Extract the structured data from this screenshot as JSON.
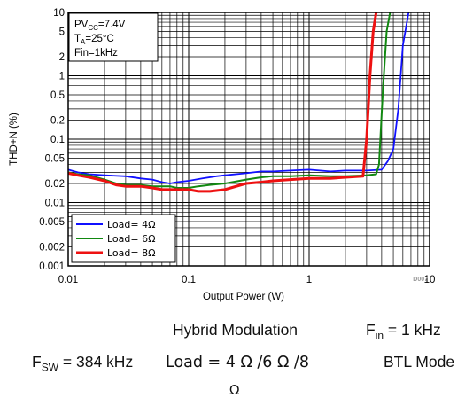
{
  "chart_data": {
    "type": "line",
    "xlabel": "Output Power (W)",
    "ylabel": "THD+N (%)",
    "xscale": "log",
    "yscale": "log",
    "xlim": [
      0.01,
      10
    ],
    "ylim": [
      0.001,
      10
    ],
    "x_ticks": [
      "0.01",
      "0.1",
      "1",
      "10"
    ],
    "y_ticks": [
      "0.001",
      "0.002",
      "0.005",
      "0.01",
      "0.02",
      "0.05",
      "0.1",
      "0.2",
      "0.5",
      "1",
      "2",
      "5",
      "10"
    ],
    "grid": true,
    "annotation": {
      "line1_main": "PV",
      "line1_sub": "CC",
      "line1_rest": "=7.4V",
      "line2_main": "T",
      "line2_sub": "A",
      "line2_rest": "=25°C",
      "line3": "Fin=1kHz"
    },
    "legend_placement": "bottom-left",
    "watermark": "D007",
    "series": [
      {
        "name": "Load= 4Ω",
        "color": "#1010ff",
        "points": [
          [
            0.01,
            0.033
          ],
          [
            0.012,
            0.03
          ],
          [
            0.015,
            0.028
          ],
          [
            0.02,
            0.027
          ],
          [
            0.03,
            0.026
          ],
          [
            0.04,
            0.024
          ],
          [
            0.05,
            0.023
          ],
          [
            0.06,
            0.021
          ],
          [
            0.07,
            0.02
          ],
          [
            0.08,
            0.021
          ],
          [
            0.1,
            0.022
          ],
          [
            0.13,
            0.024
          ],
          [
            0.17,
            0.026
          ],
          [
            0.2,
            0.027
          ],
          [
            0.3,
            0.029
          ],
          [
            0.4,
            0.031
          ],
          [
            0.5,
            0.031
          ],
          [
            0.7,
            0.032
          ],
          [
            1.0,
            0.033
          ],
          [
            1.5,
            0.031
          ],
          [
            2,
            0.032
          ],
          [
            3,
            0.032
          ],
          [
            4,
            0.033
          ],
          [
            4.5,
            0.045
          ],
          [
            5,
            0.07
          ],
          [
            5.5,
            0.3
          ],
          [
            6,
            3.0
          ],
          [
            6.7,
            10
          ]
        ]
      },
      {
        "name": "Load= 6Ω",
        "color": "#118811",
        "points": [
          [
            0.01,
            0.03
          ],
          [
            0.012,
            0.028
          ],
          [
            0.015,
            0.027
          ],
          [
            0.02,
            0.023
          ],
          [
            0.025,
            0.02
          ],
          [
            0.03,
            0.019
          ],
          [
            0.04,
            0.019
          ],
          [
            0.05,
            0.018
          ],
          [
            0.07,
            0.018
          ],
          [
            0.08,
            0.017
          ],
          [
            0.1,
            0.017
          ],
          [
            0.12,
            0.018
          ],
          [
            0.15,
            0.019
          ],
          [
            0.2,
            0.02
          ],
          [
            0.3,
            0.023
          ],
          [
            0.4,
            0.025
          ],
          [
            0.5,
            0.026
          ],
          [
            0.7,
            0.026
          ],
          [
            1.0,
            0.027
          ],
          [
            1.5,
            0.026
          ],
          [
            2,
            0.026
          ],
          [
            3,
            0.027
          ],
          [
            3.6,
            0.028
          ],
          [
            3.8,
            0.04
          ],
          [
            4.1,
            0.6
          ],
          [
            4.4,
            5.0
          ],
          [
            4.7,
            10
          ]
        ]
      },
      {
        "name": "Load= 8Ω",
        "color": "#ee1111",
        "points": [
          [
            0.01,
            0.029
          ],
          [
            0.012,
            0.027
          ],
          [
            0.015,
            0.025
          ],
          [
            0.02,
            0.022
          ],
          [
            0.025,
            0.019
          ],
          [
            0.03,
            0.018
          ],
          [
            0.04,
            0.018
          ],
          [
            0.05,
            0.017
          ],
          [
            0.06,
            0.016
          ],
          [
            0.08,
            0.016
          ],
          [
            0.1,
            0.016
          ],
          [
            0.12,
            0.015
          ],
          [
            0.15,
            0.015
          ],
          [
            0.2,
            0.016
          ],
          [
            0.3,
            0.02
          ],
          [
            0.4,
            0.021
          ],
          [
            0.5,
            0.022
          ],
          [
            0.7,
            0.023
          ],
          [
            1.0,
            0.024
          ],
          [
            1.5,
            0.024
          ],
          [
            2,
            0.025
          ],
          [
            2.8,
            0.026
          ],
          [
            3.0,
            0.1
          ],
          [
            3.2,
            1.0
          ],
          [
            3.4,
            5.0
          ],
          [
            3.6,
            10
          ]
        ]
      }
    ]
  },
  "captions": {
    "title": "Hybrid Modulation",
    "fsw_main": "F",
    "fsw_sub": "SW",
    "fsw_rest": " = 384 kHz",
    "fin_main": "F",
    "fin_sub": "in",
    "fin_rest": " = 1 kHz",
    "load": "Load = 4 Ω /6 Ω /8",
    "ohm": "Ω",
    "mode": "BTL Mode"
  }
}
